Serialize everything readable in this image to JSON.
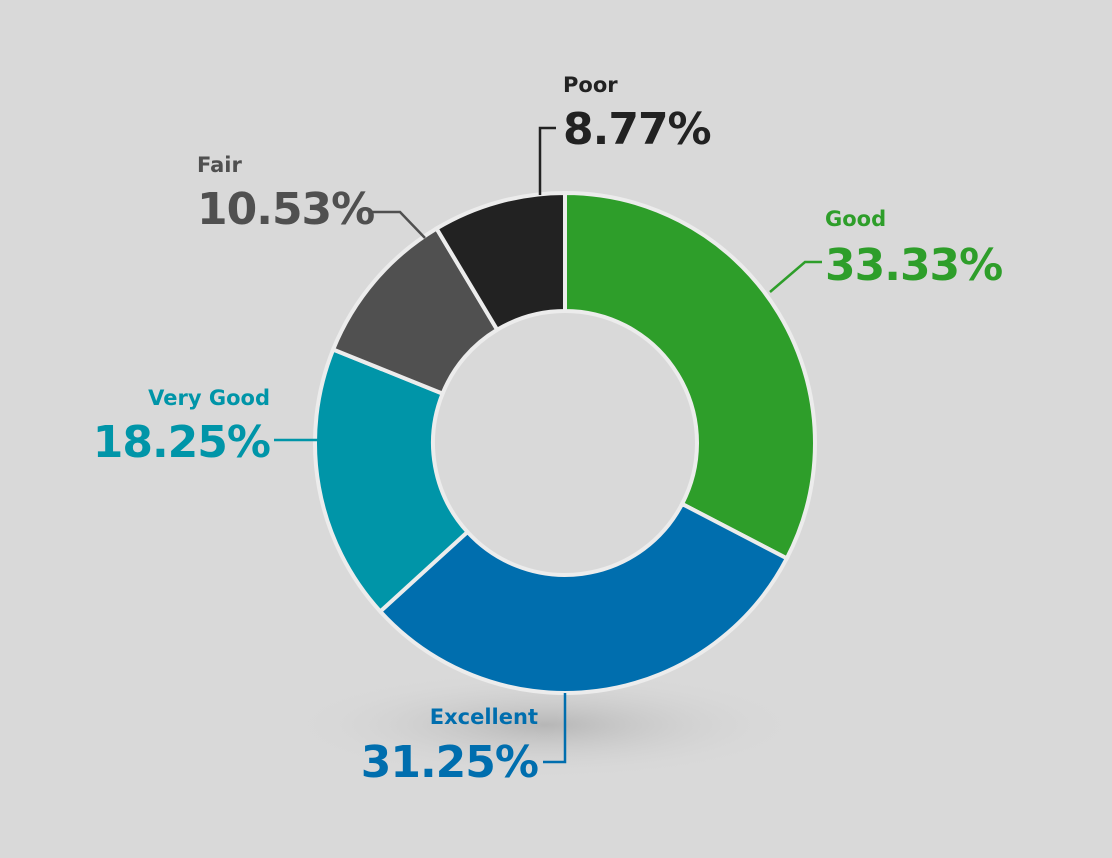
{
  "chart_data": {
    "type": "donut",
    "categories": [
      "Good",
      "Excellent",
      "Very Good",
      "Fair",
      "Poor"
    ],
    "values": [
      33.33,
      31.25,
      18.25,
      10.53,
      8.77
    ],
    "value_labels": [
      "33.33%",
      "31.25%",
      "18.25%",
      "10.53%",
      "8.77%"
    ],
    "colors": [
      "#2e9e2a",
      "#006eae",
      "#0095a8",
      "#505050",
      "#222222"
    ]
  }
}
